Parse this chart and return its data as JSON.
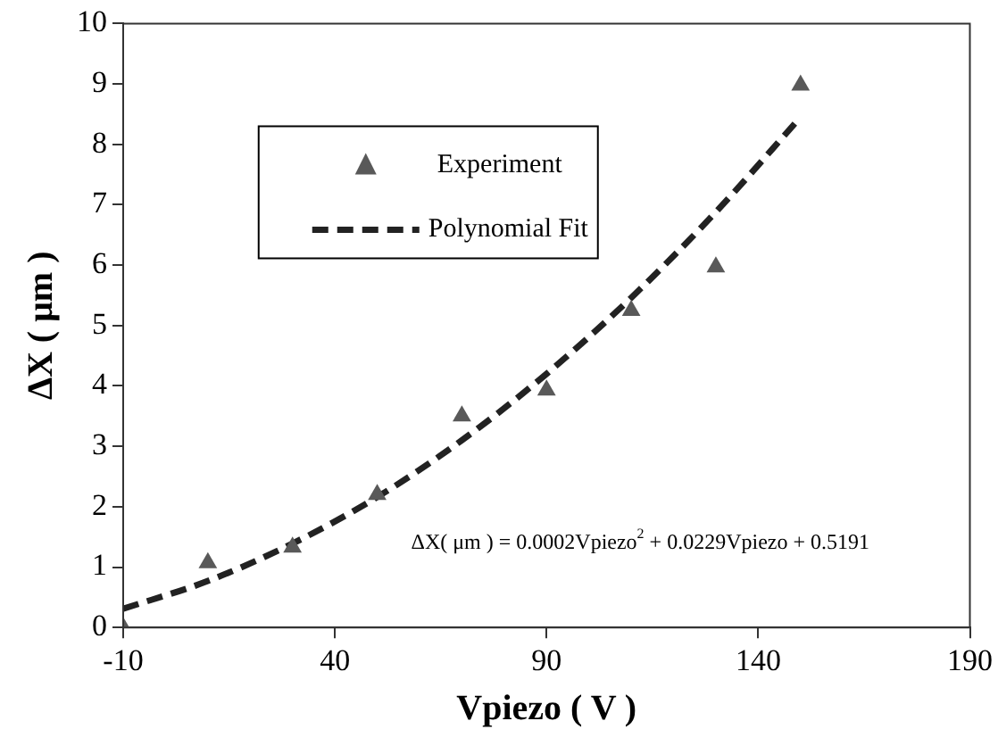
{
  "chart_data": {
    "type": "scatter",
    "xlabel": "Vpiezo ( V )",
    "ylabel": "ΔX ( μm )",
    "xlim": [
      -10,
      190
    ],
    "xticks": [
      -10,
      40,
      90,
      140,
      190
    ],
    "ylim": [
      0,
      10
    ],
    "yticks": [
      0,
      1,
      2,
      3,
      4,
      5,
      6,
      7,
      8,
      9,
      10
    ],
    "grid": false,
    "legend": "top left",
    "series": [
      {
        "name": "Experiment",
        "color": "#595959",
        "marker": "triangle",
        "x": [
          -10,
          10,
          30,
          50,
          70,
          90,
          110,
          130,
          150
        ],
        "values": [
          0,
          1.07,
          1.33,
          2.2,
          3.5,
          3.93,
          5.25,
          5.97,
          8.98
        ]
      },
      {
        "name": "Polynomial Fit",
        "type": "line",
        "color": "#222222",
        "marker": "none",
        "line_style": "dashed",
        "x": [
          -10,
          10,
          30,
          50,
          70,
          90,
          110,
          130,
          150
        ],
        "values": [
          0.31,
          0.77,
          1.39,
          2.16,
          3.1,
          4.2,
          5.46,
          6.88,
          8.45
        ]
      }
    ],
    "annotations": [
      "ΔX( μm ) = 0.0002Vpiezo$^{2}$ + 0.0229Vpiezo + 0.5191"
    ]
  }
}
